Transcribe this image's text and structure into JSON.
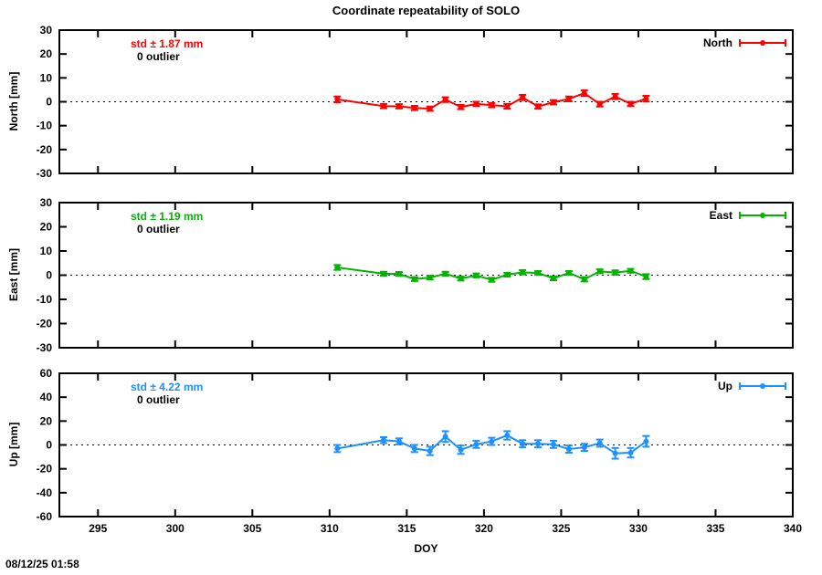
{
  "page": {
    "title": "Coordinate repeatability of SOLO",
    "xlabel": "DOY",
    "timestamp": "08/12/25 01:58"
  },
  "x_axis": {
    "lim": [
      292.5,
      340
    ],
    "ticks": [
      295,
      300,
      305,
      310,
      315,
      320,
      325,
      330,
      335,
      340
    ]
  },
  "chart_data": [
    {
      "type": "line",
      "name": "North",
      "ylabel": "North [mm]",
      "legend": "North",
      "std_label": "std ± 1.87 mm",
      "outlier_label": "0 outlier",
      "color": "#ff0000",
      "ylim": [
        -30,
        30
      ],
      "yticks": [
        -30,
        -20,
        -10,
        0,
        10,
        20,
        30
      ],
      "x": [
        310.5,
        313.5,
        314.5,
        315.5,
        316.5,
        317.5,
        318.5,
        319.5,
        320.5,
        321.5,
        322.5,
        323.5,
        324.5,
        325.5,
        326.5,
        327.5,
        328.5,
        329.5,
        330.5
      ],
      "y": [
        1.0,
        -1.8,
        -1.9,
        -2.6,
        -2.9,
        0.9,
        -2.2,
        -0.9,
        -1.4,
        -1.9,
        1.8,
        -2.0,
        -0.2,
        1.2,
        3.6,
        -1.0,
        2.2,
        -0.9,
        1.3
      ],
      "yerr": [
        1.2,
        0.9,
        0.9,
        0.9,
        0.9,
        1.0,
        0.9,
        0.9,
        0.9,
        1.0,
        1.1,
        0.9,
        0.9,
        1.0,
        1.2,
        1.0,
        1.1,
        0.9,
        1.2
      ]
    },
    {
      "type": "line",
      "name": "East",
      "ylabel": "East [mm]",
      "legend": "East",
      "std_label": "std ± 1.19 mm",
      "outlier_label": "0 outlier",
      "color": "#00b400",
      "ylim": [
        -30,
        30
      ],
      "yticks": [
        -30,
        -20,
        -10,
        0,
        10,
        20,
        30
      ],
      "x": [
        310.5,
        313.5,
        314.5,
        315.5,
        316.5,
        317.5,
        318.5,
        319.5,
        320.5,
        321.5,
        322.5,
        323.5,
        324.5,
        325.5,
        326.5,
        327.5,
        328.5,
        329.5,
        330.5
      ],
      "y": [
        3.2,
        0.6,
        0.5,
        -1.6,
        -1.0,
        0.6,
        -1.4,
        -0.1,
        -1.9,
        0.2,
        1.2,
        0.9,
        -1.3,
        0.9,
        -1.7,
        1.6,
        1.1,
        1.8,
        -0.6
      ],
      "yerr": [
        1.0,
        0.8,
        0.8,
        0.8,
        0.8,
        0.8,
        0.8,
        0.8,
        0.8,
        0.8,
        0.9,
        0.8,
        0.8,
        0.8,
        0.9,
        0.8,
        0.9,
        0.8,
        1.0
      ]
    },
    {
      "type": "line",
      "name": "Up",
      "ylabel": "Up [mm]",
      "legend": "Up",
      "std_label": "std ± 4.22 mm",
      "outlier_label": "0 outlier",
      "color": "#1e90ff",
      "ylim": [
        -60,
        60
      ],
      "yticks": [
        -60,
        -40,
        -20,
        0,
        20,
        40,
        60
      ],
      "x": [
        310.5,
        313.5,
        314.5,
        315.5,
        316.5,
        317.5,
        318.5,
        319.5,
        320.5,
        321.5,
        322.5,
        323.5,
        324.5,
        325.5,
        326.5,
        327.5,
        328.5,
        329.5,
        330.5
      ],
      "y": [
        -3.0,
        4.0,
        3.0,
        -3.0,
        -5.0,
        7.0,
        -4.0,
        0.5,
        3.0,
        8.0,
        1.0,
        1.0,
        0.5,
        -3.5,
        -2.0,
        1.5,
        -7.0,
        -6.5,
        3.0
      ],
      "yerr": [
        3.0,
        2.5,
        2.5,
        3.0,
        3.5,
        4.5,
        3.5,
        3.0,
        3.0,
        3.5,
        3.0,
        3.0,
        3.0,
        3.0,
        3.0,
        3.0,
        4.5,
        4.0,
        4.5
      ]
    }
  ]
}
